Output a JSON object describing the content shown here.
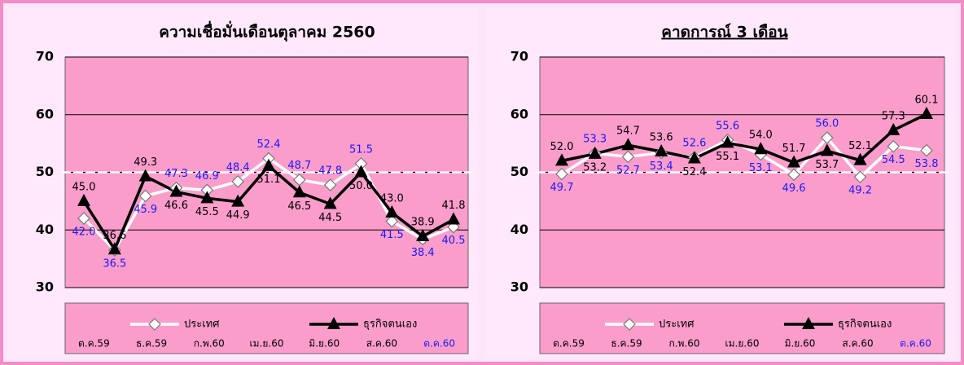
{
  "chart_data": [
    {
      "type": "line",
      "title": "ความเชื่อมั่นเดือนตุลาคม 2560",
      "categories": [
        "ต.ค.59",
        null,
        "ธ.ค.59",
        null,
        "ก.พ.60",
        null,
        "เม.ย.60",
        null,
        "มิ.ย.60",
        null,
        "ส.ค.60",
        null,
        "ต.ค.60"
      ],
      "series": [
        {
          "name": "ประเทศ",
          "color": "#ffffff",
          "label_color": "#1a1aff",
          "marker": "diamond",
          "values": [
            42.0,
            36.5,
            45.9,
            47.3,
            46.9,
            48.4,
            52.4,
            48.7,
            47.8,
            51.5,
            41.5,
            38.4,
            40.5
          ],
          "value_labels": [
            "42.0",
            "36.5",
            "45.9",
            "47.3",
            "46.9",
            "48.4",
            "52.4",
            "48.7",
            "47.8",
            "51.5",
            "41.5",
            "38.4",
            "40.5"
          ]
        },
        {
          "name": "ธุรกิจตนเอง",
          "color": "#000000",
          "label_color": "#000000",
          "marker": "triangle",
          "values": [
            45.0,
            36.6,
            49.3,
            46.6,
            45.5,
            44.9,
            51.1,
            46.5,
            44.5,
            50.0,
            43.0,
            38.9,
            41.8
          ],
          "value_labels": [
            "45.0",
            "36.6",
            "49.3",
            "46.6",
            "45.5",
            "44.9",
            "51.1",
            "46.5",
            "44.5",
            "50.0",
            "43.0",
            "38.9",
            "41.8"
          ]
        }
      ],
      "ylim": [
        30,
        70
      ],
      "yticks": [
        30,
        40,
        50,
        60,
        70
      ],
      "grid": true,
      "reference_line": 50,
      "legend": "bottom"
    },
    {
      "type": "line",
      "title": "คาดการณ์ 3 เดือน",
      "categories": [
        "ต.ค.59",
        null,
        "ธ.ค.59",
        null,
        "ก.พ.60",
        null,
        "เม.ย.60",
        null,
        "มิ.ย.60",
        null,
        "ส.ค.60",
        "ต.ค.60"
      ],
      "series": [
        {
          "name": "ประเทศ",
          "color": "#ffffff",
          "label_color": "#1a1aff",
          "marker": "diamond",
          "values": [
            49.7,
            53.3,
            52.7,
            53.4,
            52.6,
            55.6,
            53.1,
            49.6,
            56.0,
            49.2,
            54.5,
            53.8
          ],
          "value_labels": [
            "49.7",
            "53.3",
            "52.7",
            "53.4",
            "52.6",
            "55.6",
            "53.1",
            "49.6",
            "56.0",
            "49.2",
            "54.5",
            "53.8"
          ]
        },
        {
          "name": "ธุรกิจตนเอง",
          "color": "#000000",
          "label_color": "#000000",
          "marker": "triangle",
          "values": [
            52.0,
            53.2,
            54.7,
            53.6,
            52.4,
            55.1,
            54.0,
            51.7,
            53.7,
            52.1,
            57.3,
            60.1
          ],
          "value_labels": [
            "52.0",
            "53.2",
            "54.7",
            "53.6",
            "52.4",
            "55.1",
            "54.0",
            "51.7",
            "53.7",
            "52.1",
            "57.3",
            "60.1"
          ]
        }
      ],
      "ylim": [
        30,
        70
      ],
      "yticks": [
        30,
        40,
        50,
        60,
        70
      ],
      "grid": true,
      "reference_line": 50,
      "legend": "bottom"
    }
  ]
}
